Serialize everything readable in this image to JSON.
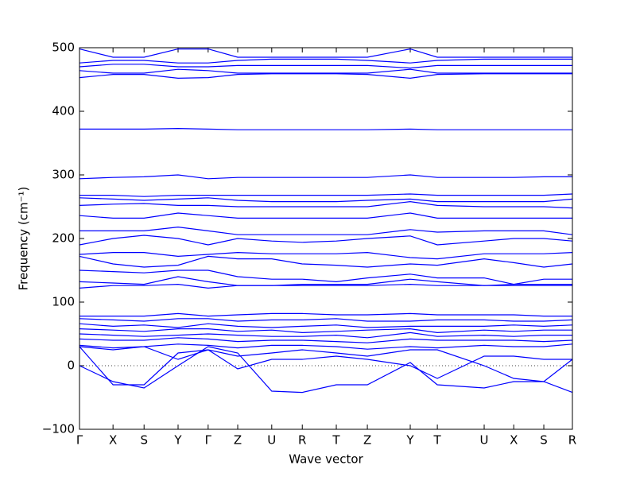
{
  "chart_data": {
    "type": "line",
    "xlabel": "Wave vector",
    "ylabel": "Frequency (cm⁻¹)",
    "xlim": [
      0,
      1
    ],
    "ylim": [
      -100,
      500
    ],
    "xticks": [
      {
        "value": 0,
        "label": "Γ"
      },
      {
        "value": 0.068,
        "label": "X"
      },
      {
        "value": 0.131,
        "label": "S"
      },
      {
        "value": 0.2,
        "label": "Y"
      },
      {
        "value": 0.261,
        "label": "Γ"
      },
      {
        "value": 0.321,
        "label": "Z"
      },
      {
        "value": 0.39,
        "label": "U"
      },
      {
        "value": 0.452,
        "label": "R"
      },
      {
        "value": 0.521,
        "label": "T"
      },
      {
        "value": 0.584,
        "label": "Z"
      },
      {
        "value": 0.671,
        "label": "Y"
      },
      {
        "value": 0.726,
        "label": "T"
      },
      {
        "value": 0.821,
        "label": "U"
      },
      {
        "value": 0.881,
        "label": "X"
      },
      {
        "value": 0.942,
        "label": "S"
      },
      {
        "value": 1.0,
        "label": "R"
      }
    ],
    "yticks": [
      {
        "value": -100,
        "label": "−100"
      },
      0,
      100,
      200,
      300,
      400,
      500
    ],
    "zero_line": 0,
    "color": "#0000ff",
    "x": [
      0,
      0.068,
      0.131,
      0.2,
      0.261,
      0.321,
      0.39,
      0.452,
      0.521,
      0.584,
      0.671,
      0.726,
      0.821,
      0.881,
      0.942,
      1.0
    ],
    "series": [
      {
        "values": [
          498,
          485,
          485,
          498,
          498,
          485,
          485,
          485,
          485,
          485,
          498,
          485,
          485,
          485,
          485,
          485
        ]
      },
      {
        "values": [
          476,
          480,
          480,
          476,
          476,
          480,
          482,
          482,
          482,
          480,
          476,
          480,
          482,
          482,
          482,
          482
        ]
      },
      {
        "values": [
          470,
          474,
          474,
          470,
          470,
          472,
          472,
          472,
          472,
          472,
          468,
          472,
          472,
          472,
          472,
          472
        ]
      },
      {
        "values": [
          464,
          460,
          460,
          466,
          464,
          460,
          460,
          460,
          460,
          460,
          466,
          460,
          460,
          460,
          460,
          460
        ]
      },
      {
        "values": [
          453,
          458,
          458,
          452,
          453,
          458,
          459,
          459,
          459,
          458,
          452,
          458,
          459,
          459,
          459,
          459
        ]
      },
      {
        "values": [
          372,
          372,
          372,
          373,
          372,
          371,
          371,
          371,
          371,
          371,
          372,
          371,
          371,
          371,
          371,
          371
        ]
      },
      {
        "values": [
          294,
          296,
          297,
          300,
          294,
          296,
          296,
          296,
          296,
          296,
          300,
          296,
          296,
          296,
          297,
          297
        ]
      },
      {
        "values": [
          268,
          268,
          266,
          268,
          268,
          268,
          268,
          268,
          268,
          268,
          270,
          268,
          268,
          268,
          268,
          270
        ]
      },
      {
        "values": [
          264,
          262,
          260,
          262,
          264,
          260,
          258,
          258,
          258,
          260,
          262,
          258,
          258,
          258,
          258,
          262
        ]
      },
      {
        "values": [
          252,
          254,
          255,
          252,
          252,
          250,
          250,
          250,
          250,
          250,
          258,
          252,
          250,
          250,
          250,
          248
        ]
      },
      {
        "values": [
          236,
          232,
          232,
          240,
          236,
          232,
          232,
          232,
          232,
          232,
          240,
          232,
          232,
          232,
          232,
          232
        ]
      },
      {
        "values": [
          212,
          212,
          212,
          218,
          212,
          206,
          206,
          206,
          206,
          206,
          214,
          210,
          212,
          212,
          212,
          206
        ]
      },
      {
        "values": [
          190,
          200,
          205,
          200,
          190,
          200,
          196,
          194,
          196,
          200,
          204,
          190,
          196,
          200,
          200,
          196
        ]
      },
      {
        "values": [
          175,
          178,
          178,
          172,
          175,
          178,
          176,
          176,
          176,
          178,
          170,
          168,
          176,
          176,
          176,
          178
        ]
      },
      {
        "values": [
          172,
          160,
          155,
          158,
          172,
          168,
          168,
          160,
          158,
          155,
          160,
          158,
          168,
          162,
          155,
          160
        ]
      },
      {
        "values": [
          150,
          148,
          146,
          150,
          150,
          140,
          136,
          136,
          132,
          138,
          144,
          138,
          138,
          128,
          136,
          136
        ]
      },
      {
        "values": [
          132,
          130,
          128,
          140,
          132,
          126,
          126,
          128,
          128,
          128,
          136,
          132,
          126,
          128,
          128,
          128
        ]
      },
      {
        "values": [
          122,
          126,
          126,
          128,
          122,
          126,
          126,
          126,
          126,
          126,
          128,
          126,
          126,
          126,
          126,
          126
        ]
      },
      {
        "values": [
          78,
          78,
          78,
          82,
          78,
          80,
          82,
          82,
          80,
          80,
          82,
          80,
          80,
          80,
          78,
          78
        ]
      },
      {
        "values": [
          74,
          72,
          70,
          74,
          74,
          70,
          72,
          72,
          74,
          70,
          70,
          72,
          72,
          70,
          70,
          72
        ]
      },
      {
        "values": [
          66,
          62,
          64,
          60,
          66,
          62,
          60,
          62,
          64,
          60,
          62,
          62,
          62,
          64,
          62,
          64
        ]
      },
      {
        "values": [
          58,
          56,
          54,
          58,
          58,
          54,
          56,
          52,
          54,
          56,
          58,
          52,
          56,
          54,
          56,
          56
        ]
      },
      {
        "values": [
          50,
          48,
          46,
          48,
          50,
          48,
          46,
          46,
          48,
          44,
          52,
          46,
          48,
          46,
          48,
          48
        ]
      },
      {
        "values": [
          42,
          40,
          40,
          44,
          42,
          38,
          40,
          40,
          38,
          36,
          42,
          40,
          40,
          40,
          38,
          40
        ]
      },
      {
        "values": [
          32,
          28,
          30,
          34,
          32,
          28,
          32,
          32,
          30,
          26,
          30,
          28,
          32,
          30,
          30,
          34
        ]
      },
      {
        "values": [
          30,
          25,
          30,
          10,
          25,
          15,
          20,
          25,
          20,
          15,
          25,
          25,
          0,
          -20,
          -25,
          10
        ]
      },
      {
        "values": [
          30,
          -30,
          -30,
          20,
          25,
          -5,
          10,
          10,
          15,
          10,
          0,
          -20,
          15,
          15,
          10,
          10
        ]
      },
      {
        "values": [
          0,
          -25,
          -35,
          0,
          30,
          20,
          -40,
          -42,
          -30,
          -30,
          5,
          -30,
          -35,
          -25,
          -25,
          -42
        ]
      }
    ]
  }
}
